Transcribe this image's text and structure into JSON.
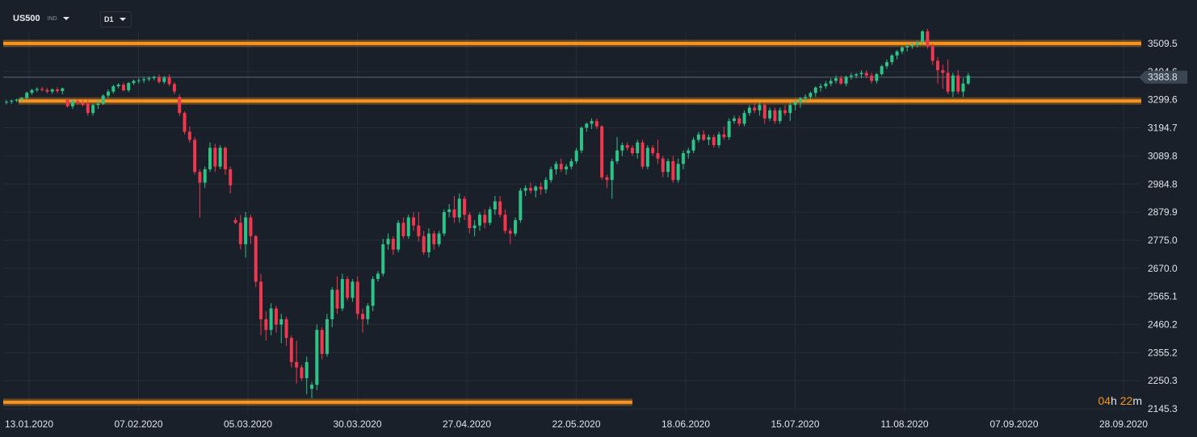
{
  "toolbar": {
    "symbol": "US500",
    "instrument_type": "IND",
    "timeframe": "D1"
  },
  "timer": {
    "hours": "04",
    "h_unit": "h",
    "minutes": "22",
    "m_unit": "m"
  },
  "colors": {
    "background": "#19202a",
    "grid": "#242c38",
    "bull": "#2fc287",
    "bear": "#f0374d",
    "level_line": "#f7931e",
    "price_tag": "#3b4553"
  },
  "chart_data": {
    "type": "candlestick",
    "y_ticks": [
      "3509.5",
      "3404.6",
      "3299.6",
      "3194.7",
      "3089.8",
      "2984.8",
      "2879.9",
      "2775.0",
      "2670.0",
      "2565.1",
      "2460.2",
      "2355.2",
      "2250.3",
      "2145.3"
    ],
    "ylim": [
      2120,
      3600
    ],
    "x_ticks": [
      "13.01.2020",
      "07.02.2020",
      "05.03.2020",
      "30.03.2020",
      "27.04.2020",
      "22.05.2020",
      "18.06.2020",
      "15.07.2020",
      "11.08.2020",
      "07.09.2020",
      "28.09.2020"
    ],
    "current_price": "3383.8",
    "levels": [
      {
        "value": 3510,
        "from_index": 0,
        "to_index": 223
      },
      {
        "value": 3295,
        "from_index": 3,
        "to_index": 223
      },
      {
        "value": 2170,
        "from_index": 0,
        "to_index": 123
      }
    ],
    "candles": [
      [
        3290,
        3298,
        3282,
        3292
      ],
      [
        3292,
        3300,
        3284,
        3296
      ],
      [
        3296,
        3304,
        3290,
        3300
      ],
      [
        3300,
        3310,
        3294,
        3306
      ],
      [
        3306,
        3330,
        3300,
        3326
      ],
      [
        3326,
        3340,
        3318,
        3336
      ],
      [
        3336,
        3346,
        3328,
        3340
      ],
      [
        3340,
        3348,
        3330,
        3336
      ],
      [
        3336,
        3344,
        3324,
        3330
      ],
      [
        3330,
        3342,
        3322,
        3338
      ],
      [
        3338,
        3346,
        3324,
        3332
      ],
      [
        3332,
        3345,
        3320,
        3342
      ],
      [
        3300,
        3305,
        3270,
        3275
      ],
      [
        3275,
        3300,
        3265,
        3295
      ],
      [
        3295,
        3302,
        3280,
        3288
      ],
      [
        3288,
        3298,
        3275,
        3280
      ],
      [
        3285,
        3300,
        3240,
        3250
      ],
      [
        3250,
        3285,
        3240,
        3280
      ],
      [
        3280,
        3300,
        3265,
        3285
      ],
      [
        3285,
        3320,
        3280,
        3315
      ],
      [
        3315,
        3338,
        3305,
        3330
      ],
      [
        3330,
        3356,
        3322,
        3350
      ],
      [
        3350,
        3362,
        3342,
        3356
      ],
      [
        3356,
        3364,
        3330,
        3335
      ],
      [
        3335,
        3366,
        3328,
        3362
      ],
      [
        3362,
        3375,
        3354,
        3370
      ],
      [
        3370,
        3380,
        3360,
        3372
      ],
      [
        3372,
        3384,
        3362,
        3376
      ],
      [
        3376,
        3386,
        3368,
        3380
      ],
      [
        3380,
        3390,
        3372,
        3384
      ],
      [
        3384,
        3394,
        3360,
        3366
      ],
      [
        3366,
        3388,
        3358,
        3382
      ],
      [
        3382,
        3395,
        3350,
        3358
      ],
      [
        3358,
        3365,
        3320,
        3330
      ],
      [
        3310,
        3320,
        3240,
        3250
      ],
      [
        3250,
        3256,
        3170,
        3180
      ],
      [
        3180,
        3200,
        3140,
        3150
      ],
      [
        3150,
        3160,
        3020,
        3030
      ],
      [
        3030,
        3040,
        2860,
        2990
      ],
      [
        2990,
        3050,
        2970,
        3040
      ],
      [
        3040,
        3140,
        3030,
        3120
      ],
      [
        3120,
        3135,
        3030,
        3050
      ],
      [
        3050,
        3130,
        3040,
        3120
      ],
      [
        3120,
        3125,
        3020,
        3040
      ],
      [
        3040,
        3050,
        2950,
        2980
      ],
      [
        2850,
        2860,
        2835,
        2840
      ],
      [
        2840,
        2870,
        2740,
        2760
      ],
      [
        2760,
        2880,
        2710,
        2860
      ],
      [
        2860,
        2870,
        2760,
        2790
      ],
      [
        2790,
        2795,
        2600,
        2620
      ],
      [
        2620,
        2650,
        2420,
        2480
      ],
      [
        2480,
        2510,
        2400,
        2440
      ],
      [
        2440,
        2540,
        2420,
        2520
      ],
      [
        2520,
        2530,
        2430,
        2460
      ],
      [
        2460,
        2500,
        2390,
        2480
      ],
      [
        2480,
        2490,
        2380,
        2410
      ],
      [
        2410,
        2420,
        2300,
        2320
      ],
      [
        2320,
        2400,
        2240,
        2300
      ],
      [
        2300,
        2310,
        2250,
        2260
      ],
      [
        2260,
        2340,
        2200,
        2320
      ],
      [
        2220,
        2245,
        2185,
        2235
      ],
      [
        2235,
        2460,
        2215,
        2440
      ],
      [
        2440,
        2450,
        2330,
        2350
      ],
      [
        2350,
        2500,
        2340,
        2480
      ],
      [
        2480,
        2600,
        2450,
        2590
      ],
      [
        2590,
        2640,
        2500,
        2520
      ],
      [
        2520,
        2650,
        2510,
        2630
      ],
      [
        2630,
        2640,
        2550,
        2560
      ],
      [
        2560,
        2630,
        2545,
        2620
      ],
      [
        2620,
        2640,
        2480,
        2500
      ],
      [
        2500,
        2520,
        2430,
        2480
      ],
      [
        2480,
        2540,
        2460,
        2530
      ],
      [
        2530,
        2640,
        2510,
        2630
      ],
      [
        2630,
        2660,
        2620,
        2650
      ],
      [
        2650,
        2780,
        2640,
        2760
      ],
      [
        2760,
        2800,
        2740,
        2780
      ],
      [
        2780,
        2790,
        2720,
        2740
      ],
      [
        2740,
        2850,
        2730,
        2840
      ],
      [
        2840,
        2860,
        2780,
        2790
      ],
      [
        2790,
        2870,
        2780,
        2860
      ],
      [
        2860,
        2880,
        2810,
        2830
      ],
      [
        2830,
        2880,
        2770,
        2790
      ],
      [
        2790,
        2810,
        2720,
        2730
      ],
      [
        2730,
        2820,
        2710,
        2800
      ],
      [
        2800,
        2810,
        2740,
        2760
      ],
      [
        2760,
        2810,
        2750,
        2800
      ],
      [
        2800,
        2890,
        2790,
        2880
      ],
      [
        2880,
        2910,
        2860,
        2890
      ],
      [
        2890,
        2940,
        2840,
        2860
      ],
      [
        2860,
        2950,
        2840,
        2930
      ],
      [
        2930,
        2940,
        2850,
        2870
      ],
      [
        2870,
        2880,
        2800,
        2820
      ],
      [
        2820,
        2850,
        2790,
        2830
      ],
      [
        2830,
        2880,
        2810,
        2870
      ],
      [
        2870,
        2890,
        2820,
        2840
      ],
      [
        2840,
        2900,
        2830,
        2890
      ],
      [
        2890,
        2940,
        2870,
        2920
      ],
      [
        2920,
        2940,
        2860,
        2870
      ],
      [
        2870,
        2890,
        2800,
        2810
      ],
      [
        2810,
        2820,
        2760,
        2800
      ],
      [
        2800,
        2860,
        2790,
        2850
      ],
      [
        2850,
        2970,
        2840,
        2960
      ],
      [
        2960,
        2980,
        2940,
        2970
      ],
      [
        2970,
        2990,
        2950,
        2960
      ],
      [
        2960,
        2980,
        2935,
        2975
      ],
      [
        2975,
        2990,
        2945,
        2965
      ],
      [
        2965,
        3010,
        2950,
        3000
      ],
      [
        3000,
        3050,
        2990,
        3040
      ],
      [
        3040,
        3070,
        3020,
        3060
      ],
      [
        3060,
        3080,
        3030,
        3040
      ],
      [
        3040,
        3060,
        3020,
        3050
      ],
      [
        3050,
        3080,
        3040,
        3070
      ],
      [
        3070,
        3120,
        3060,
        3110
      ],
      [
        3110,
        3200,
        3100,
        3195
      ],
      [
        3195,
        3215,
        3180,
        3210
      ],
      [
        3210,
        3230,
        3190,
        3220
      ],
      [
        3220,
        3230,
        3190,
        3200
      ],
      [
        3200,
        3205,
        3000,
        3010
      ],
      [
        3010,
        3020,
        2970,
        3000
      ],
      [
        3000,
        3080,
        2930,
        3070
      ],
      [
        3070,
        3160,
        3060,
        3110
      ],
      [
        3110,
        3140,
        3090,
        3130
      ],
      [
        3130,
        3140,
        3110,
        3120
      ],
      [
        3120,
        3130,
        3090,
        3100
      ],
      [
        3100,
        3150,
        3080,
        3140
      ],
      [
        3140,
        3150,
        3040,
        3050
      ],
      [
        3050,
        3130,
        3040,
        3120
      ],
      [
        3120,
        3130,
        3090,
        3100
      ],
      [
        3100,
        3150,
        3060,
        3080
      ],
      [
        3080,
        3090,
        3010,
        3030
      ],
      [
        3030,
        3080,
        3010,
        3070
      ],
      [
        3070,
        3090,
        2990,
        3000
      ],
      [
        3000,
        3080,
        2990,
        3060
      ],
      [
        3060,
        3110,
        3040,
        3100
      ],
      [
        3100,
        3120,
        3080,
        3110
      ],
      [
        3110,
        3160,
        3100,
        3150
      ],
      [
        3150,
        3180,
        3140,
        3170
      ],
      [
        3170,
        3185,
        3145,
        3150
      ],
      [
        3150,
        3170,
        3130,
        3160
      ],
      [
        3160,
        3170,
        3120,
        3130
      ],
      [
        3130,
        3180,
        3120,
        3170
      ],
      [
        3170,
        3200,
        3150,
        3160
      ],
      [
        3160,
        3230,
        3150,
        3220
      ],
      [
        3220,
        3240,
        3210,
        3230
      ],
      [
        3230,
        3240,
        3200,
        3210
      ],
      [
        3210,
        3260,
        3200,
        3250
      ],
      [
        3250,
        3280,
        3240,
        3270
      ],
      [
        3270,
        3290,
        3250,
        3260
      ],
      [
        3260,
        3290,
        3240,
        3280
      ],
      [
        3280,
        3290,
        3210,
        3230
      ],
      [
        3230,
        3270,
        3220,
        3260
      ],
      [
        3260,
        3270,
        3210,
        3220
      ],
      [
        3220,
        3270,
        3210,
        3260
      ],
      [
        3260,
        3280,
        3240,
        3250
      ],
      [
        3250,
        3290,
        3220,
        3280
      ],
      [
        3280,
        3300,
        3260,
        3290
      ],
      [
        3290,
        3310,
        3270,
        3305
      ],
      [
        3305,
        3320,
        3290,
        3310
      ],
      [
        3310,
        3330,
        3300,
        3325
      ],
      [
        3325,
        3350,
        3310,
        3345
      ],
      [
        3345,
        3360,
        3330,
        3350
      ],
      [
        3350,
        3370,
        3340,
        3360
      ],
      [
        3360,
        3380,
        3350,
        3370
      ],
      [
        3370,
        3390,
        3360,
        3380
      ],
      [
        3380,
        3390,
        3355,
        3360
      ],
      [
        3360,
        3390,
        3350,
        3385
      ],
      [
        3385,
        3400,
        3375,
        3390
      ],
      [
        3390,
        3400,
        3380,
        3395
      ],
      [
        3395,
        3410,
        3380,
        3400
      ],
      [
        3400,
        3410,
        3380,
        3390
      ],
      [
        3390,
        3400,
        3360,
        3370
      ],
      [
        3370,
        3400,
        3360,
        3395
      ],
      [
        3395,
        3430,
        3390,
        3425
      ],
      [
        3425,
        3450,
        3415,
        3440
      ],
      [
        3440,
        3470,
        3430,
        3465
      ],
      [
        3465,
        3485,
        3450,
        3480
      ],
      [
        3480,
        3500,
        3470,
        3495
      ],
      [
        3495,
        3510,
        3480,
        3500
      ],
      [
        3500,
        3515,
        3490,
        3505
      ],
      [
        3505,
        3520,
        3495,
        3515
      ],
      [
        3515,
        3560,
        3505,
        3555
      ],
      [
        3555,
        3565,
        3490,
        3500
      ],
      [
        3500,
        3510,
        3430,
        3445
      ],
      [
        3445,
        3460,
        3360,
        3410
      ],
      [
        3410,
        3430,
        3340,
        3400
      ],
      [
        3400,
        3450,
        3320,
        3330
      ],
      [
        3330,
        3400,
        3310,
        3390
      ],
      [
        3390,
        3410,
        3320,
        3330
      ],
      [
        3330,
        3380,
        3310,
        3360
      ],
      [
        3360,
        3400,
        3355,
        3390
      ]
    ]
  }
}
